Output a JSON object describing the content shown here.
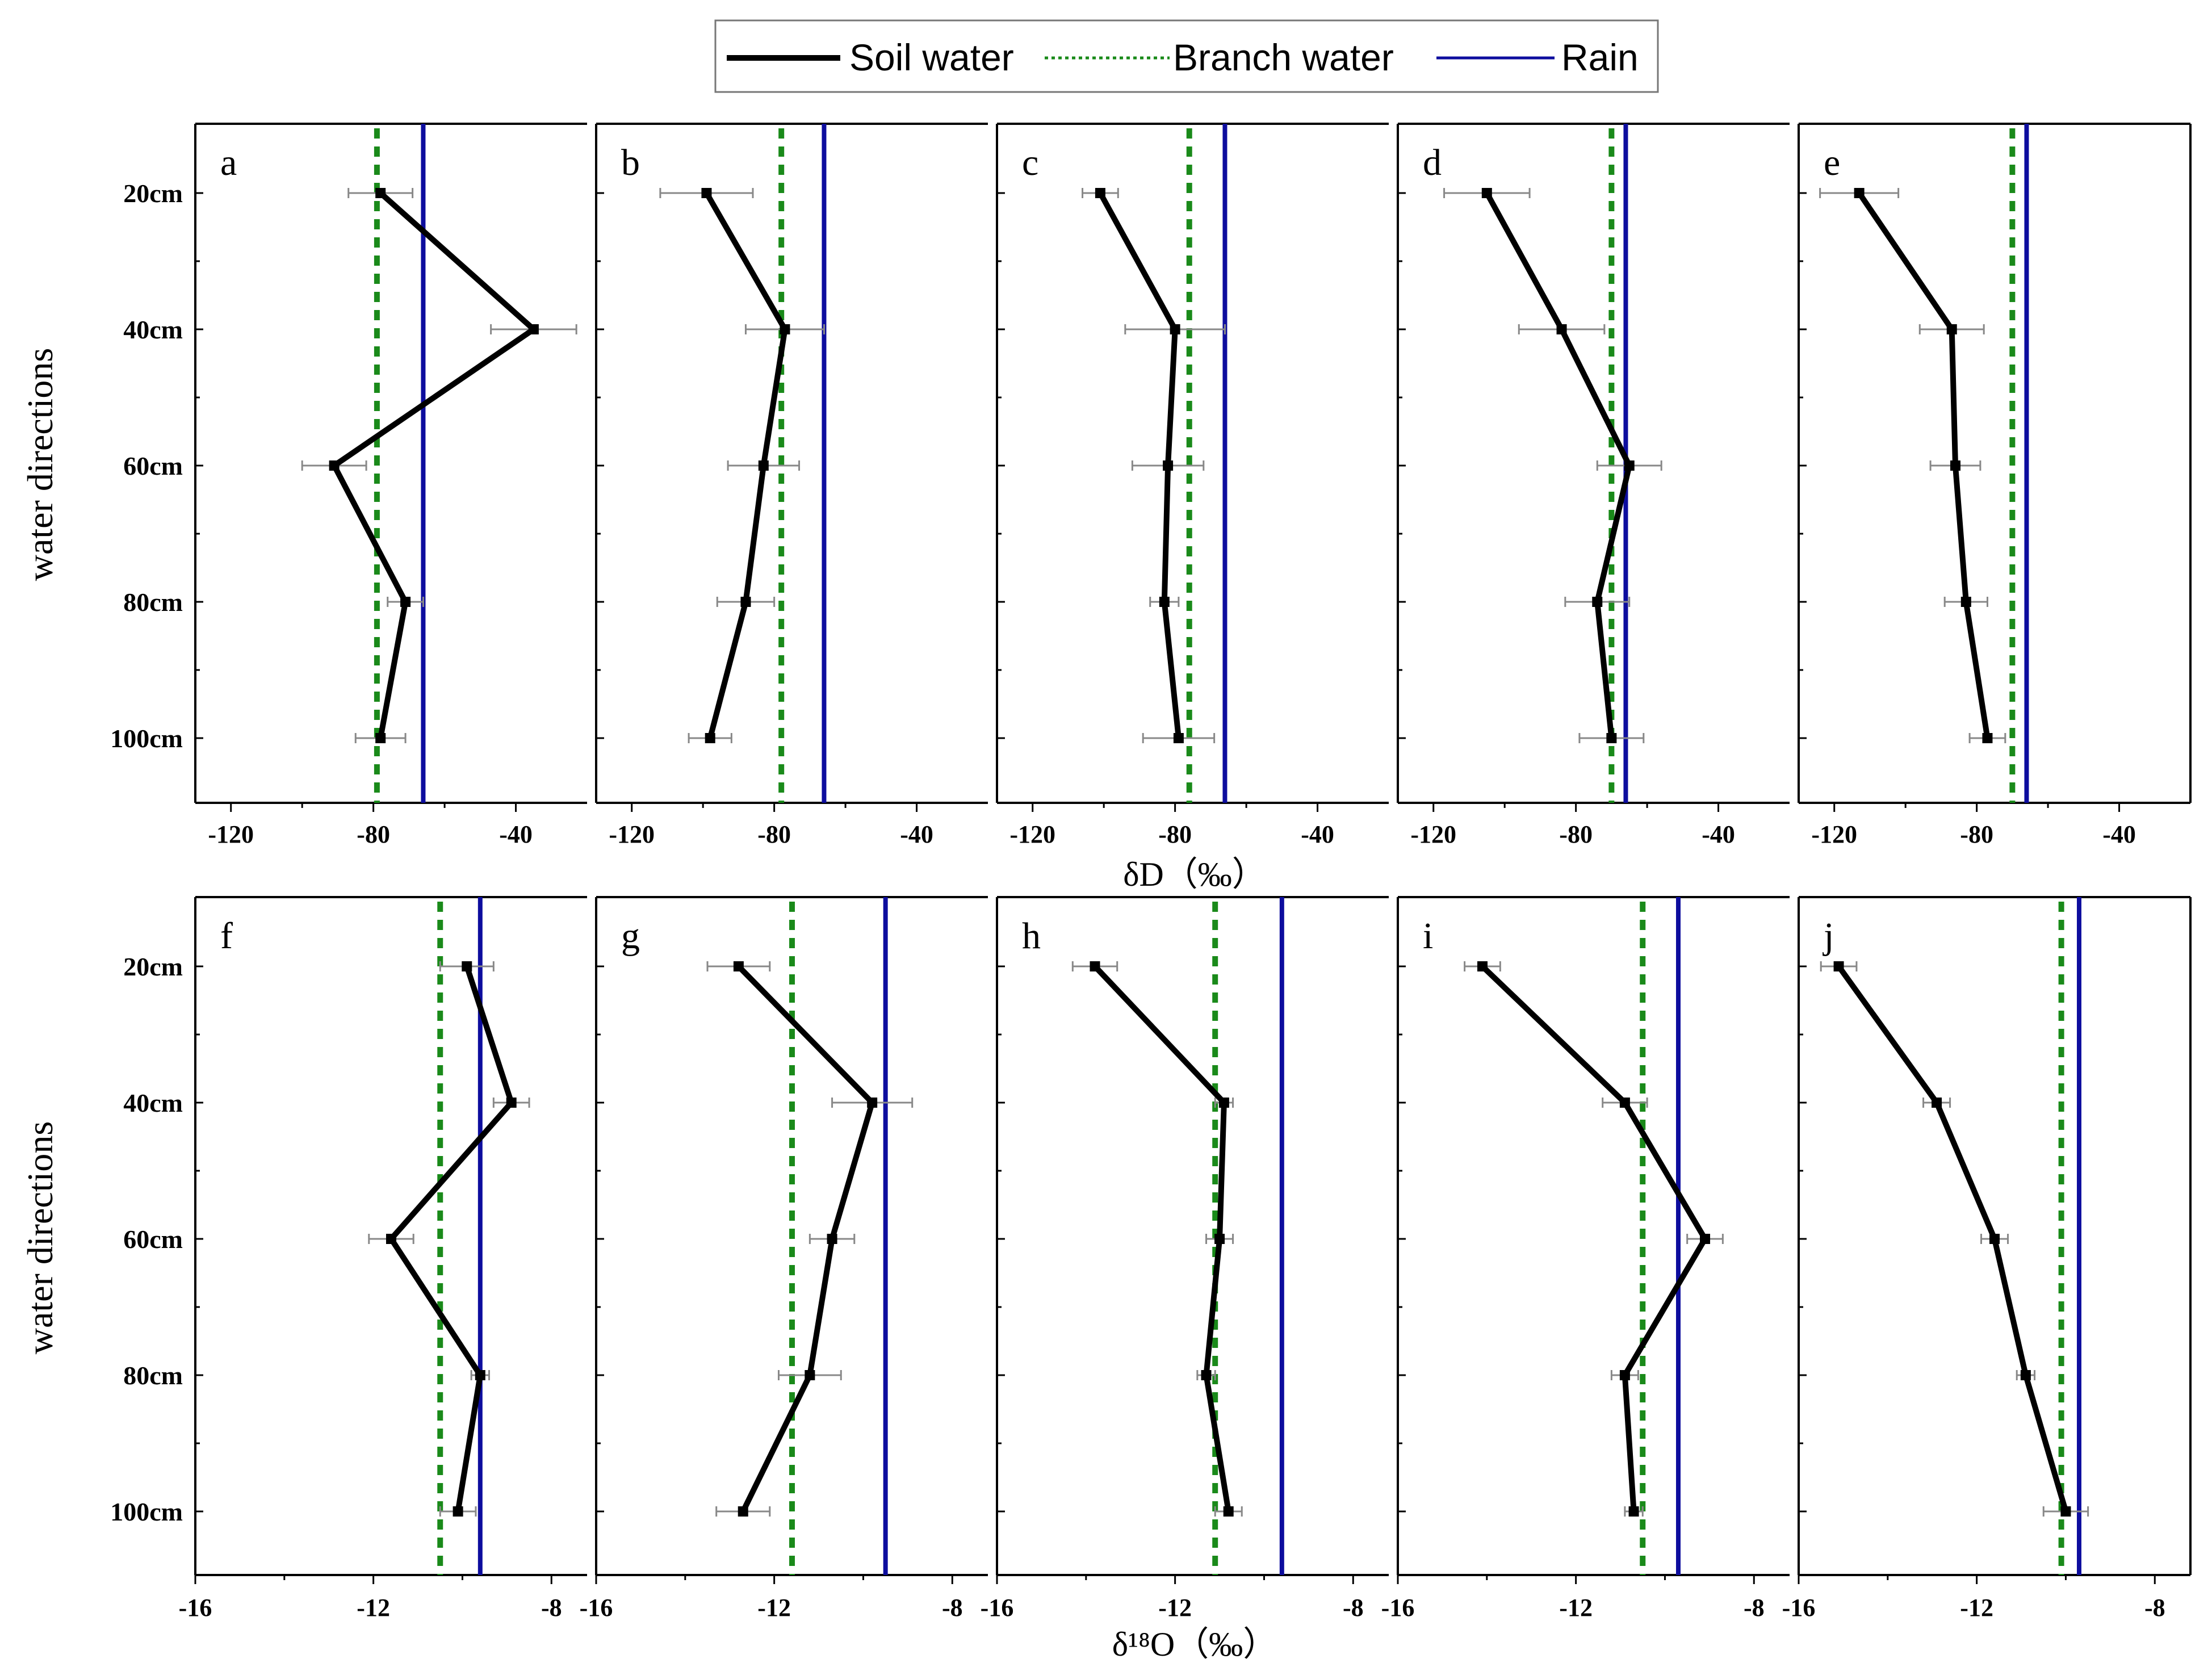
{
  "legend": {
    "entries": [
      {
        "label": "Soil water",
        "style": "solid",
        "color": "#000000"
      },
      {
        "label": "Branch water",
        "style": "dotted",
        "color": "#1a8a1a"
      },
      {
        "label": "Rain",
        "style": "solid",
        "color": "#0d0d9e"
      }
    ]
  },
  "y_axis_label": "water directions",
  "depth_labels": [
    "20cm",
    "40cm",
    "60cm",
    "80cm",
    "100cm"
  ],
  "chart_data": [
    {
      "row": "top",
      "type": "line",
      "xlabel": "δD（‰）",
      "xlim": [
        -130,
        -20
      ],
      "xticks": [
        -120,
        -80,
        -40
      ],
      "ylabel": "water directions",
      "categories": [
        "20cm",
        "40cm",
        "60cm",
        "80cm",
        "100cm"
      ],
      "panels": [
        {
          "label": "a",
          "soil_water": [
            -78,
            -35,
            -91,
            -71,
            -78
          ],
          "error": [
            9,
            12,
            9,
            5,
            7
          ],
          "branch_water": -79,
          "rain": -66
        },
        {
          "label": "b",
          "soil_water": [
            -99,
            -77,
            -83,
            -88,
            -98
          ],
          "error": [
            13,
            11,
            10,
            8,
            6
          ],
          "branch_water": -78,
          "rain": -66
        },
        {
          "label": "c",
          "soil_water": [
            -101,
            -80,
            -82,
            -83,
            -79
          ],
          "error": [
            5,
            14,
            10,
            4,
            10
          ],
          "branch_water": -76,
          "rain": -66
        },
        {
          "label": "d",
          "soil_water": [
            -105,
            -84,
            -65,
            -74,
            -70
          ],
          "error": [
            12,
            12,
            9,
            9,
            9
          ],
          "branch_water": -70,
          "rain": -66
        },
        {
          "label": "e",
          "soil_water": [
            -113,
            -87,
            -86,
            -83,
            -77
          ],
          "error": [
            11,
            9,
            7,
            6,
            5
          ],
          "branch_water": -70,
          "rain": -66
        }
      ]
    },
    {
      "row": "bottom",
      "type": "line",
      "xlabel": "δ¹⁸O（‰）",
      "xlim": [
        -16,
        -7.2
      ],
      "xticks": [
        -16,
        -12,
        -8
      ],
      "ylabel": "water directions",
      "categories": [
        "20cm",
        "40cm",
        "60cm",
        "80cm",
        "100cm"
      ],
      "panels": [
        {
          "label": "f",
          "soil_water": [
            -9.9,
            -8.9,
            -11.6,
            -9.6,
            -10.1
          ],
          "error": [
            0.6,
            0.4,
            0.5,
            0.2,
            0.4
          ],
          "branch_water": -10.5,
          "rain": -9.6
        },
        {
          "label": "g",
          "soil_water": [
            -12.8,
            -9.8,
            -10.7,
            -11.2,
            -12.7
          ],
          "error": [
            0.7,
            0.9,
            0.5,
            0.7,
            0.6
          ],
          "branch_water": -11.6,
          "rain": -9.5
        },
        {
          "label": "h",
          "soil_water": [
            -13.8,
            -10.9,
            -11.0,
            -11.3,
            -10.8
          ],
          "error": [
            0.5,
            0.2,
            0.3,
            0.2,
            0.3
          ],
          "branch_water": -11.1,
          "rain": -9.6
        },
        {
          "label": "i",
          "soil_water": [
            -14.1,
            -10.9,
            -9.1,
            -10.9,
            -10.7
          ],
          "error": [
            0.4,
            0.5,
            0.4,
            0.3,
            0.2
          ],
          "branch_water": -10.5,
          "rain": -9.7
        },
        {
          "label": "j",
          "soil_water": [
            -15.1,
            -12.9,
            -11.6,
            -10.9,
            -10.0
          ],
          "error": [
            0.4,
            0.3,
            0.3,
            0.2,
            0.5
          ],
          "branch_water": -10.1,
          "rain": -9.7
        }
      ]
    }
  ]
}
